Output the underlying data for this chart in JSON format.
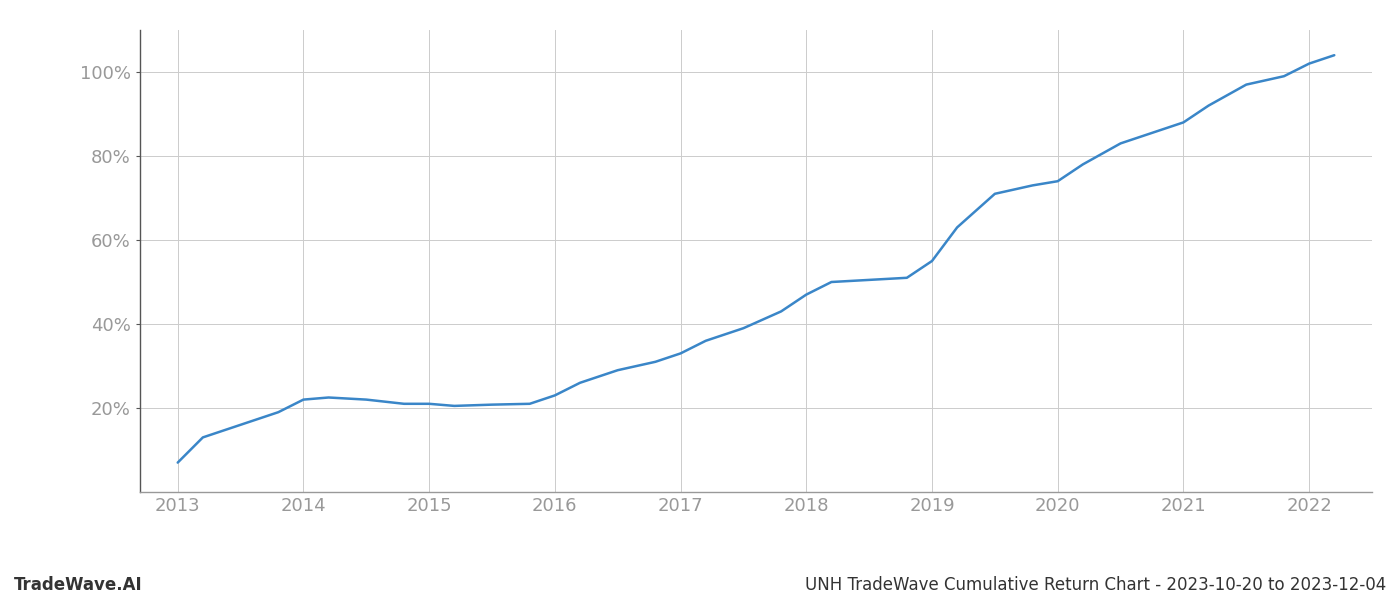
{
  "title_right": "UNH TradeWave Cumulative Return Chart - 2023-10-20 to 2023-12-04",
  "title_left": "TradeWave.AI",
  "line_color": "#3a86c8",
  "background_color": "#ffffff",
  "grid_color": "#cccccc",
  "x_values": [
    2013.0,
    2013.2,
    2013.5,
    2013.8,
    2014.0,
    2014.2,
    2014.5,
    2014.8,
    2015.0,
    2015.2,
    2015.5,
    2015.8,
    2016.0,
    2016.2,
    2016.5,
    2016.8,
    2017.0,
    2017.2,
    2017.5,
    2017.8,
    2018.0,
    2018.2,
    2018.5,
    2018.8,
    2019.0,
    2019.2,
    2019.5,
    2019.8,
    2020.0,
    2020.2,
    2020.5,
    2020.8,
    2021.0,
    2021.2,
    2021.5,
    2021.8,
    2022.0,
    2022.2
  ],
  "y_values": [
    7,
    13,
    16,
    19,
    22,
    22.5,
    22,
    21,
    21,
    20.5,
    20.8,
    21,
    23,
    26,
    29,
    31,
    33,
    36,
    39,
    43,
    47,
    50,
    50.5,
    51,
    55,
    63,
    71,
    73,
    74,
    78,
    83,
    86,
    88,
    92,
    97,
    99,
    102,
    104
  ],
  "xlim": [
    2012.7,
    2022.5
  ],
  "ylim": [
    0,
    110
  ],
  "yticks": [
    20,
    40,
    60,
    80,
    100
  ],
  "xticks": [
    2013,
    2014,
    2015,
    2016,
    2017,
    2018,
    2019,
    2020,
    2021,
    2022
  ],
  "line_width": 1.8,
  "tick_color": "#999999",
  "tick_label_fontsize": 13,
  "footer_fontsize": 12,
  "left_spine_color": "#555555",
  "bottom_spine_color": "#999999"
}
